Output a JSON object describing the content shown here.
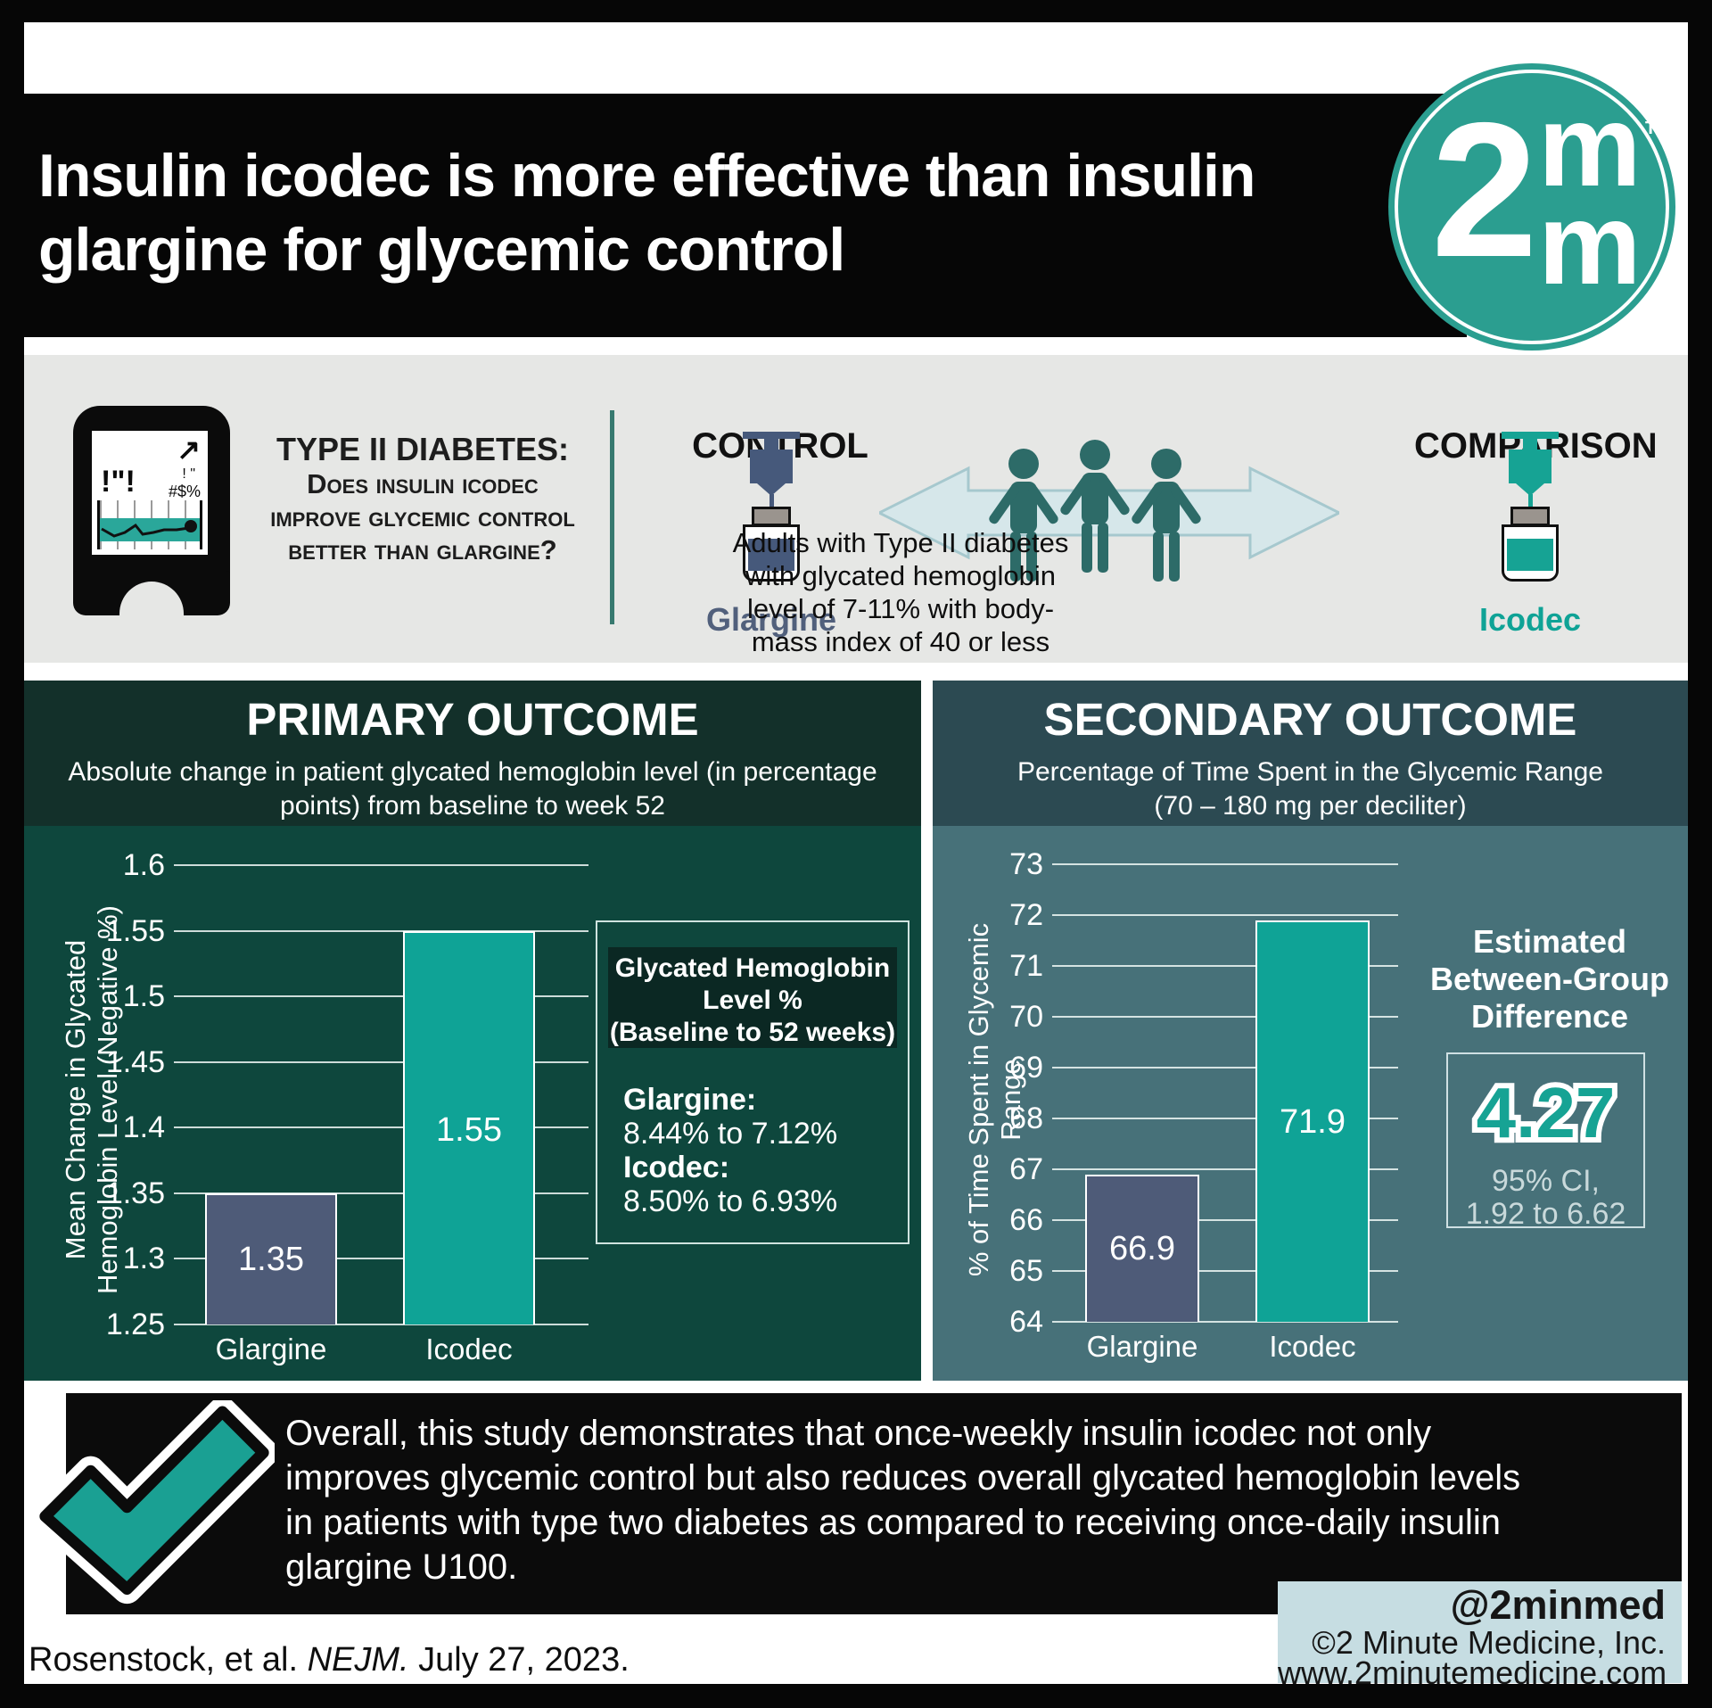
{
  "header": {
    "title_line1": "Insulin icodec is more effective than insulin",
    "title_line2": "glargine for glycemic control",
    "logo": {
      "big2": "2",
      "m_top": "m",
      "m_bottom": "m",
      "tm": "TM"
    }
  },
  "study": {
    "meter_screen": {
      "exclaims": "!\"!",
      "arrow": "↗",
      "quote_marks": "! \"",
      "symbols": "#$%"
    },
    "question_title": "TYPE II DIABETES:",
    "question_lines": [
      "Does insulin icodec",
      "improve glycemic control",
      "better than glargine?"
    ],
    "control": {
      "label": "CONTROL",
      "drug": "Glargine"
    },
    "comparison": {
      "label": "COMPARISON",
      "drug": "Icodec"
    },
    "population_lines": [
      "Adults with Type II diabetes",
      "with glycated hemoglobin",
      "level of 7-11% with body-",
      "mass index of 40 or less"
    ]
  },
  "primary": {
    "title": "PRIMARY OUTCOME",
    "subtitle_line1": "Absolute change in patient glycated hemoglobin level (in percentage",
    "subtitle_line2": "points) from baseline to week 52",
    "ylabel_line1": "Mean Change in Glycated",
    "ylabel_line2": "Hemoglobin Level (Negative %)",
    "info_box": {
      "heading_lines": [
        "Glycated Hemoglobin",
        "Level %",
        "(Baseline to 52 weeks)"
      ],
      "glargine_label": "Glargine:",
      "glargine_value": "8.44% to 7.12%",
      "icodec_label": "Icodec:",
      "icodec_value": "8.50% to 6.93%"
    }
  },
  "secondary": {
    "title": "SECONDARY OUTCOME",
    "subtitle_line1": "Percentage of Time Spent in the Glycemic Range",
    "subtitle_line2": "(70 – 180 mg per deciliter)",
    "ylabel_line1": "% of Time Spent in Glycemic",
    "ylabel_line2": "Range",
    "difference": {
      "heading_line1": "Estimated",
      "heading_line2": "Between-Group",
      "heading_line3": "Difference",
      "value": "4.27",
      "ci_line1": "95% CI,",
      "ci_line2": "1.92 to 6.62"
    }
  },
  "chart_data": [
    {
      "type": "bar",
      "title": "PRIMARY OUTCOME",
      "categories": [
        "Glargine",
        "Icodec"
      ],
      "values": [
        1.35,
        1.55
      ],
      "value_labels": [
        "1.35",
        "1.55"
      ],
      "ylabel": "Mean Change in Glycated Hemoglobin Level (Negative %)",
      "ylim": [
        1.25,
        1.6
      ],
      "yticks": [
        1.6,
        1.55,
        1.5,
        1.45,
        1.4,
        1.35,
        1.3,
        1.25
      ],
      "ytick_labels": [
        "1.6",
        "1.55",
        "1.5",
        "1.45",
        "1.4",
        "1.35",
        "1.3",
        "1.25"
      ],
      "grid": true,
      "legend": "none",
      "bar_colors": [
        "#4E5B78",
        "#0FA396"
      ]
    },
    {
      "type": "bar",
      "title": "SECONDARY OUTCOME",
      "categories": [
        "Glargine",
        "Icodec"
      ],
      "values": [
        66.9,
        71.9
      ],
      "value_labels": [
        "66.9",
        "71.9"
      ],
      "ylabel": "% of Time Spent in Glycemic Range",
      "ylim": [
        64,
        73
      ],
      "yticks": [
        73,
        72,
        71,
        70,
        69,
        68,
        67,
        66,
        65,
        64
      ],
      "ytick_labels": [
        "73",
        "72",
        "71",
        "70",
        "69",
        "68",
        "67",
        "66",
        "65",
        "64"
      ],
      "grid": true,
      "legend": "none",
      "bar_colors": [
        "#4E5B78",
        "#0FA396"
      ]
    }
  ],
  "conclusion": {
    "lines": [
      "Overall, this study demonstrates that once-weekly insulin icodec not only",
      "improves glycemic control but also reduces overall glycated hemoglobin levels",
      "in patients with type two diabetes as compared to receiving once-daily insulin",
      "glargine U100."
    ]
  },
  "footer": {
    "citation_prefix": "Rosenstock, et al. ",
    "citation_journal": "NEJM.",
    "citation_suffix": " July 27, 2023.",
    "social": "@2minmed",
    "company": "©2 Minute Medicine, Inc.",
    "website": "www.2minutemedicine.com"
  },
  "colors": {
    "accent_teal": "#16A394",
    "logo_teal": "#2B9E90",
    "glargine_slate": "#4E5B78",
    "panel_primary_bg": "#0E473D",
    "panel_primary_header": "#13302A",
    "panel_secondary_bg": "#477179",
    "panel_secondary_header": "#2C4A52",
    "section_gray": "#E6E7E5",
    "footer_box": "#C6DDE2"
  }
}
